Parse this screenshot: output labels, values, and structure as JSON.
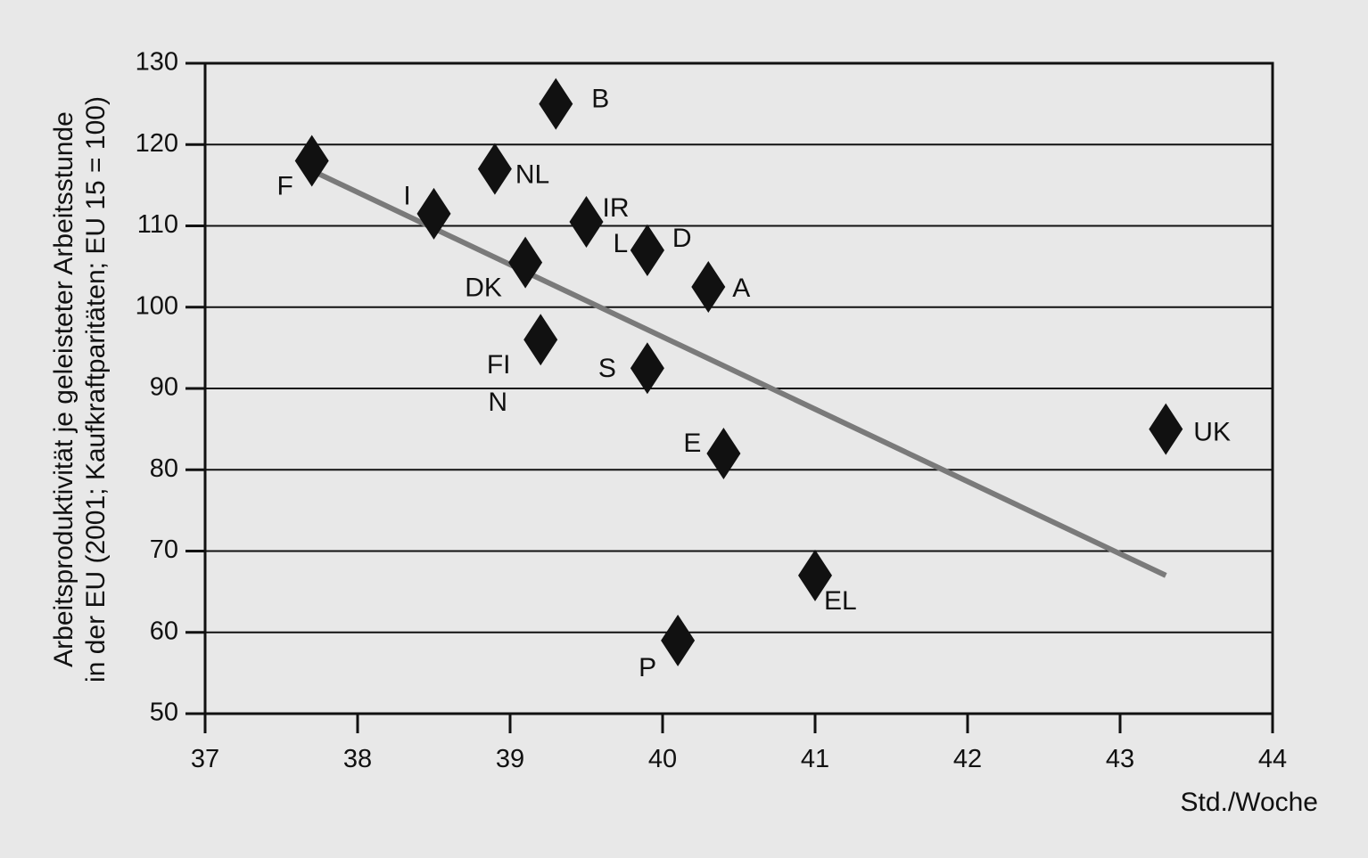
{
  "chart_data": {
    "type": "scatter",
    "title": "",
    "xlabel": "Std./Woche",
    "ylabel_line1": "Arbeitsproduktivität je geleisteter Arbeitsstunde",
    "ylabel_line2": "in der EU (2001; Kaufkraftparitäten; EU 15 = 100)",
    "xlim": [
      37,
      44
    ],
    "ylim": [
      50,
      130
    ],
    "xticks": [
      37,
      38,
      39,
      40,
      41,
      42,
      43,
      44
    ],
    "yticks": [
      50,
      60,
      70,
      80,
      90,
      100,
      110,
      120,
      130
    ],
    "grid": "horizontal",
    "marker": "diamond",
    "points": [
      {
        "label": "F",
        "x": 37.7,
        "y": 118
      },
      {
        "label": "I",
        "x": 38.5,
        "y": 111.5
      },
      {
        "label": "NL",
        "x": 38.9,
        "y": 117
      },
      {
        "label": "B",
        "x": 39.3,
        "y": 125
      },
      {
        "label": "DK",
        "x": 39.1,
        "y": 105.5
      },
      {
        "label": "FI",
        "x": 39.2,
        "y": 96
      },
      {
        "label": "N",
        "x": null,
        "y": null
      },
      {
        "label": "IR",
        "x": 39.5,
        "y": 110.5
      },
      {
        "label": "L",
        "x": 39.9,
        "y": 107
      },
      {
        "label": "D",
        "x": 39.9,
        "y": 107
      },
      {
        "label": "A",
        "x": 40.3,
        "y": 102.5
      },
      {
        "label": "S",
        "x": 39.9,
        "y": 92.5
      },
      {
        "label": "E",
        "x": 40.4,
        "y": 82
      },
      {
        "label": "EL",
        "x": 41.0,
        "y": 67
      },
      {
        "label": "P",
        "x": 40.1,
        "y": 59
      },
      {
        "label": "UK",
        "x": 43.3,
        "y": 85
      }
    ],
    "trendline": {
      "x": [
        37.7,
        43.3
      ],
      "y": [
        116.8,
        67
      ]
    },
    "colors": {
      "marker": "#111111",
      "trendline": "#7a7a7a",
      "grid": "#111111",
      "background": "#e8e8e8"
    }
  }
}
